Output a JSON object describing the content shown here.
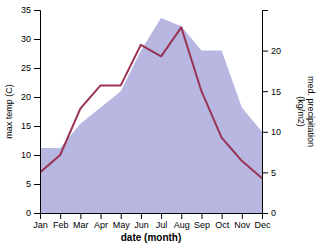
{
  "chart_data": {
    "type": "line",
    "categories": [
      "Jan",
      "Feb",
      "Mar",
      "Apr",
      "May",
      "Jun",
      "Jul",
      "Aug",
      "Sep",
      "Oct",
      "Nov",
      "Dec"
    ],
    "xlabel": "date (month)",
    "ylabel": "max temp (C)",
    "y2label": "med. precipitation\n(kg/m2)",
    "ylim": [
      0,
      35
    ],
    "yticks": [
      0,
      5,
      10,
      15,
      20,
      25,
      30,
      35
    ],
    "y2lim": [
      0,
      25
    ],
    "y2ticks": [
      0,
      5,
      10,
      15,
      20
    ],
    "series": [
      {
        "type": "area",
        "axis": "y2",
        "color": "#aaaadd",
        "values": [
          8,
          8,
          11,
          13,
          15,
          20,
          24,
          23,
          20,
          20,
          13,
          10
        ]
      },
      {
        "type": "line",
        "color": "#993355",
        "values": [
          7,
          10,
          18,
          22,
          22,
          29,
          27,
          32,
          21,
          13,
          9,
          6
        ]
      }
    ]
  }
}
